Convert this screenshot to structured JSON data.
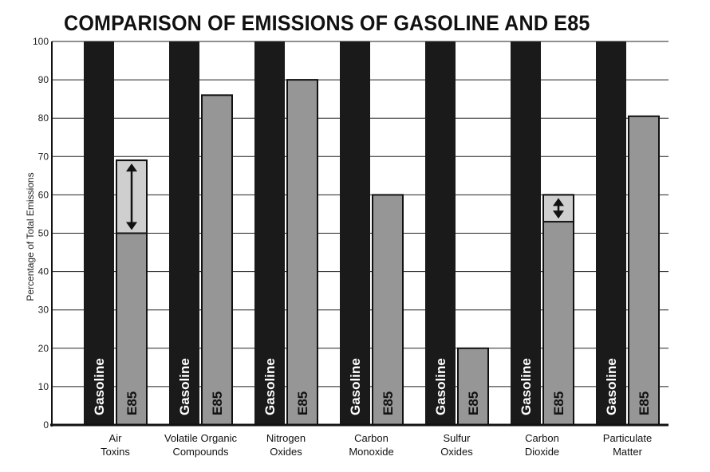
{
  "chart_data": {
    "type": "bar",
    "title": "COMPARISON OF EMISSIONS OF GASOLINE AND E85",
    "ylabel": "Percentage of Total Emissions",
    "xlabel": "",
    "ylim": [
      0,
      100
    ],
    "yticks": [
      0,
      10,
      20,
      30,
      40,
      50,
      60,
      70,
      80,
      90,
      100
    ],
    "grid": true,
    "categories": [
      [
        "Air",
        "Toxins"
      ],
      [
        "Volatile Organic",
        "Compounds"
      ],
      [
        "Nitrogen",
        "Oxides"
      ],
      [
        "Carbon",
        "Monoxide"
      ],
      [
        "Sulfur",
        "Oxides"
      ],
      [
        "Carbon",
        "Dioxide"
      ],
      [
        "Particulate",
        "Matter"
      ]
    ],
    "series": [
      {
        "name": "Gasoline",
        "values": [
          100,
          100,
          100,
          100,
          100,
          100,
          100
        ],
        "color": "#1a1a1a",
        "label_color": "#ffffff"
      },
      {
        "name": "E85",
        "values": [
          69,
          86,
          90,
          60,
          20,
          60,
          80.5
        ],
        "color": "#969696",
        "label_color": "#111111"
      }
    ],
    "ranges": [
      {
        "category_index": 0,
        "low": 50,
        "high": 69
      },
      {
        "category_index": 5,
        "low": 53,
        "high": 60
      }
    ],
    "range_color": "#cfcfcf"
  }
}
